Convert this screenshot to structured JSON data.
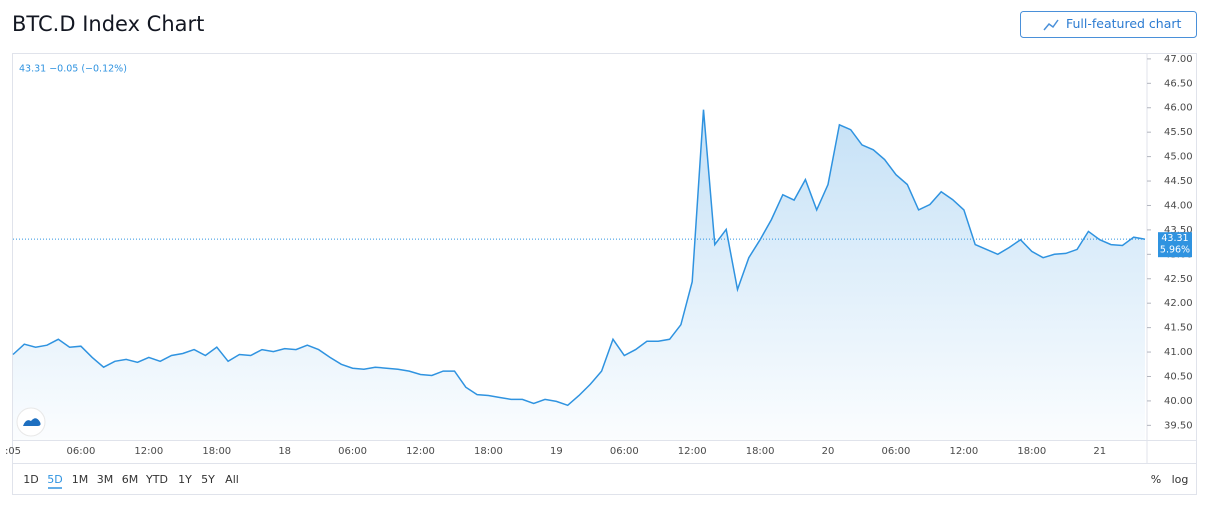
{
  "chart_data": {
    "type": "line",
    "title": "BTC.D Index Chart",
    "legend": "43.31 −0.05 (−0.12%)",
    "button": "Full-featured chart",
    "categories": [
      ":05",
      null,
      null,
      null,
      null,
      null,
      "06:00",
      null,
      null,
      null,
      null,
      null,
      "12:00",
      null,
      null,
      null,
      null,
      null,
      "18:00",
      null,
      null,
      null,
      null,
      null,
      "18",
      null,
      null,
      null,
      null,
      null,
      "06:00",
      null,
      null,
      null,
      null,
      null,
      "12:00",
      null,
      null,
      null,
      null,
      null,
      "18:00",
      null,
      null,
      null,
      null,
      null,
      "19",
      null,
      null,
      null,
      null,
      null,
      "06:00",
      null,
      null,
      null,
      null,
      null,
      "12:00",
      null,
      null,
      null,
      null,
      null,
      "18:00",
      null,
      null,
      null,
      null,
      null,
      "20",
      null,
      null,
      null,
      null,
      null,
      "06:00",
      null,
      null,
      null,
      null,
      null,
      "12:00",
      null,
      null,
      null,
      null,
      null,
      "18:00",
      null,
      null,
      null,
      null,
      null,
      "21",
      null,
      null,
      null,
      null
    ],
    "series": [
      {
        "color": "#2f93e0",
        "values": [
          40.95,
          41.16,
          41.1,
          41.14,
          41.26,
          41.1,
          41.12,
          40.89,
          40.69,
          40.81,
          40.85,
          40.79,
          40.89,
          40.81,
          40.93,
          40.97,
          41.05,
          40.93,
          41.1,
          40.81,
          40.95,
          40.93,
          41.05,
          41.01,
          41.07,
          41.05,
          41.14,
          41.05,
          40.89,
          40.75,
          40.67,
          40.65,
          40.69,
          40.67,
          40.65,
          40.61,
          40.54,
          40.52,
          40.61,
          40.61,
          40.28,
          40.13,
          40.11,
          40.07,
          40.03,
          40.03,
          39.95,
          40.03,
          39.99,
          39.91,
          40.11,
          40.34,
          40.61,
          41.26,
          40.93,
          41.05,
          41.22,
          41.22,
          41.26,
          41.56,
          42.44,
          45.96,
          43.2,
          43.51,
          42.28,
          42.93,
          43.3,
          43.71,
          44.22,
          44.11,
          44.53,
          43.91,
          44.43,
          45.65,
          45.55,
          45.24,
          45.14,
          44.94,
          44.63,
          44.43,
          43.91,
          44.02,
          44.28,
          44.12,
          43.91,
          43.2,
          43.1,
          43.0,
          43.14,
          43.3,
          43.06,
          42.93,
          43.0,
          43.02,
          43.1,
          43.47,
          43.3,
          43.2,
          43.18,
          43.35,
          43.31
        ]
      }
    ],
    "price_label": "43.31",
    "change_label": "5.96%",
    "ylim": [
      39.2,
      47.1
    ],
    "yticks": [
      {
        "value": 39.5,
        "label": "39.50"
      },
      {
        "value": 40,
        "label": "40.00"
      },
      {
        "value": 40.5,
        "label": "40.50"
      },
      {
        "value": 41,
        "label": "41.00"
      },
      {
        "value": 41.5,
        "label": "41.50"
      },
      {
        "value": 42,
        "label": "42.00"
      },
      {
        "value": 42.5,
        "label": "42.50"
      },
      {
        "value": 43,
        "label": "43.00"
      },
      {
        "value": 43.5,
        "label": "43.50"
      },
      {
        "value": 44,
        "label": "44.00"
      },
      {
        "value": 44.5,
        "label": "44.50"
      },
      {
        "value": 45,
        "label": "45.00"
      },
      {
        "value": 45.5,
        "label": "45.50"
      },
      {
        "value": 46,
        "label": "46.00"
      },
      {
        "value": 46.5,
        "label": "46.50"
      },
      {
        "value": 47,
        "label": "47.00"
      }
    ],
    "grid": false,
    "ranges": [
      "1D",
      "5D",
      "1M",
      "3M",
      "6M",
      "YTD",
      "1Y",
      "5Y",
      "All"
    ],
    "selected_range": 1,
    "percent": "%",
    "log": "log"
  }
}
